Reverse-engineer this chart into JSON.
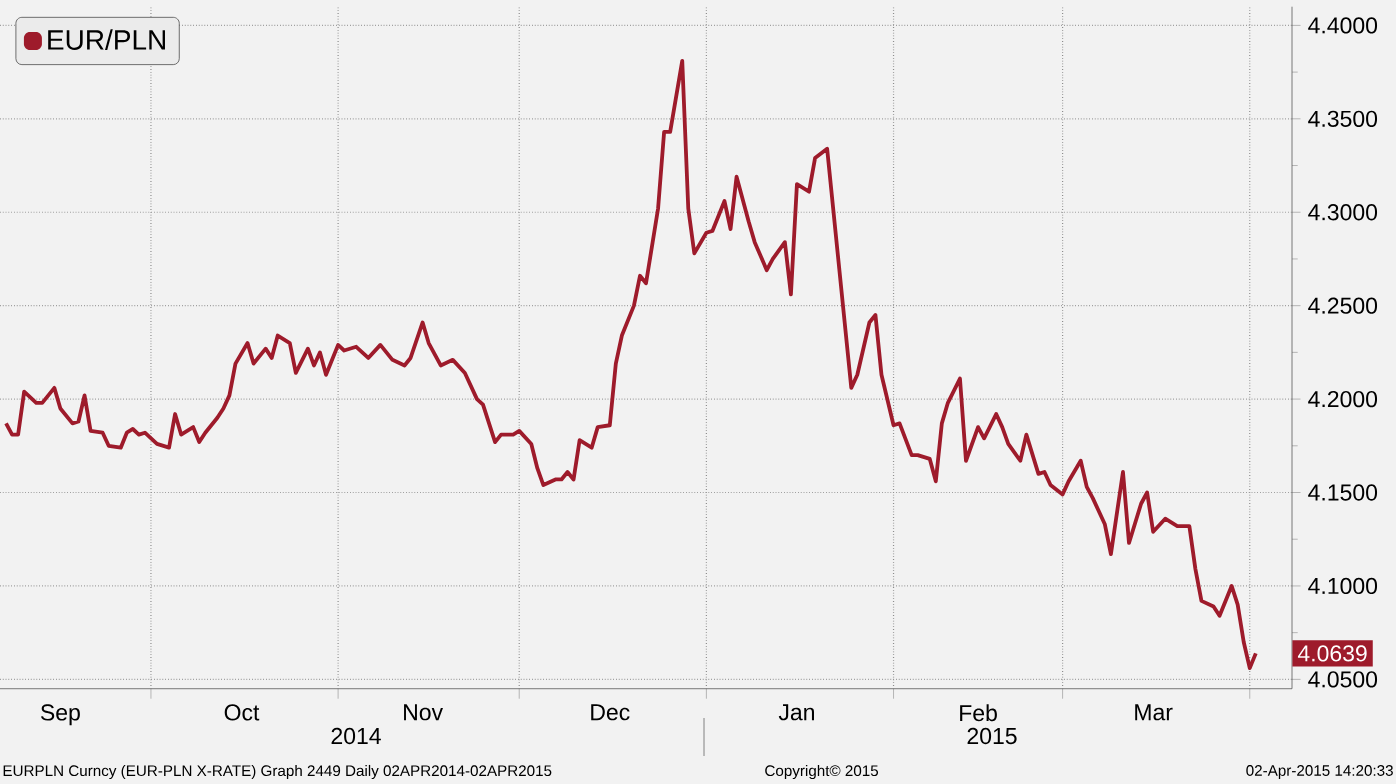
{
  "chart_data": {
    "type": "line",
    "x": [
      "2014-09-07",
      "2014-09-08",
      "2014-09-09",
      "2014-09-10",
      "2014-09-12",
      "2014-09-13",
      "2014-09-15",
      "2014-09-16",
      "2014-09-18",
      "2014-09-19",
      "2014-09-20",
      "2014-09-21",
      "2014-09-23",
      "2014-09-24",
      "2014-09-26",
      "2014-09-27",
      "2014-09-28",
      "2014-09-29",
      "2014-09-30",
      "2014-10-02",
      "2014-10-04",
      "2014-10-05",
      "2014-10-06",
      "2014-10-08",
      "2014-10-09",
      "2014-10-10",
      "2014-10-12",
      "2014-10-13",
      "2014-10-14",
      "2014-10-15",
      "2014-10-17",
      "2014-10-18",
      "2014-10-20",
      "2014-10-21",
      "2014-10-22",
      "2014-10-24",
      "2014-10-25",
      "2014-10-27",
      "2014-10-28",
      "2014-10-29",
      "2014-10-30",
      "2014-11-01",
      "2014-11-02",
      "2014-11-04",
      "2014-11-06",
      "2014-11-08",
      "2014-11-10",
      "2014-11-12",
      "2014-11-13",
      "2014-11-15",
      "2014-11-16",
      "2014-11-18",
      "2014-11-20",
      "2014-11-22",
      "2014-11-24",
      "2014-11-25",
      "2014-11-27",
      "2014-11-28",
      "2014-11-30",
      "2014-12-01",
      "2014-12-03",
      "2014-12-04",
      "2014-12-05",
      "2014-12-07",
      "2014-12-08",
      "2014-12-09",
      "2014-12-10",
      "2014-12-11",
      "2014-12-13",
      "2014-12-14",
      "2014-12-16",
      "2014-12-17",
      "2014-12-18",
      "2014-12-20",
      "2014-12-21",
      "2014-12-22",
      "2014-12-24",
      "2014-12-25",
      "2014-12-26",
      "2014-12-28",
      "2014-12-29",
      "2014-12-30",
      "2015-01-01",
      "2015-01-02",
      "2015-01-04",
      "2015-01-05",
      "2015-01-06",
      "2015-01-08",
      "2015-01-09",
      "2015-01-11",
      "2015-01-12",
      "2015-01-14",
      "2015-01-15",
      "2015-01-16",
      "2015-01-18",
      "2015-01-19",
      "2015-01-21",
      "2015-01-22",
      "2015-01-25",
      "2015-01-26",
      "2015-01-28",
      "2015-01-29",
      "2015-01-30",
      "2015-02-01",
      "2015-02-02",
      "2015-02-04",
      "2015-02-05",
      "2015-02-07",
      "2015-02-08",
      "2015-02-09",
      "2015-02-10",
      "2015-02-12",
      "2015-02-13",
      "2015-02-15",
      "2015-02-16",
      "2015-02-18",
      "2015-02-19",
      "2015-02-20",
      "2015-02-22",
      "2015-02-23",
      "2015-02-25",
      "2015-02-26",
      "2015-02-27",
      "2015-03-01",
      "2015-03-02",
      "2015-03-04",
      "2015-03-05",
      "2015-03-06",
      "2015-03-08",
      "2015-03-09",
      "2015-03-11",
      "2015-03-12",
      "2015-03-14",
      "2015-03-15",
      "2015-03-16",
      "2015-03-18",
      "2015-03-19",
      "2015-03-20",
      "2015-03-22",
      "2015-03-23",
      "2015-03-24",
      "2015-03-26",
      "2015-03-27",
      "2015-03-29",
      "2015-03-30",
      "2015-03-31",
      "2015-04-01",
      "2015-04-02"
    ],
    "series": [
      {
        "name": "EUR/PLN",
        "color": "#9e1b2b",
        "values": [
          4.187,
          4.181,
          4.181,
          4.204,
          4.198,
          4.198,
          4.206,
          4.195,
          4.187,
          4.188,
          4.202,
          4.183,
          4.182,
          4.175,
          4.174,
          4.182,
          4.184,
          4.181,
          4.182,
          4.176,
          4.174,
          4.192,
          4.181,
          4.185,
          4.177,
          4.182,
          4.19,
          4.195,
          4.202,
          4.219,
          4.23,
          4.219,
          4.227,
          4.222,
          4.234,
          4.23,
          4.214,
          4.227,
          4.218,
          4.225,
          4.213,
          4.229,
          4.226,
          4.228,
          4.222,
          4.229,
          4.221,
          4.218,
          4.222,
          4.241,
          4.23,
          4.218,
          4.221,
          4.214,
          4.2,
          4.197,
          4.177,
          4.181,
          4.181,
          4.183,
          4.176,
          4.163,
          4.154,
          4.157,
          4.157,
          4.161,
          4.157,
          4.178,
          4.174,
          4.185,
          4.186,
          4.219,
          4.234,
          4.25,
          4.266,
          4.262,
          4.302,
          4.343,
          4.343,
          4.381,
          4.302,
          4.278,
          4.289,
          4.29,
          4.306,
          4.291,
          4.319,
          4.295,
          4.284,
          4.269,
          4.275,
          4.284,
          4.256,
          4.315,
          4.311,
          4.329,
          4.334,
          4.302,
          4.206,
          4.213,
          4.241,
          4.245,
          4.213,
          4.186,
          4.187,
          4.17,
          4.17,
          4.168,
          4.156,
          4.187,
          4.198,
          4.211,
          4.167,
          4.185,
          4.179,
          4.192,
          4.185,
          4.176,
          4.167,
          4.181,
          4.16,
          4.161,
          4.154,
          4.149,
          4.156,
          4.167,
          4.153,
          4.147,
          4.133,
          4.117,
          4.161,
          4.123,
          4.144,
          4.15,
          4.129,
          4.136,
          4.134,
          4.132,
          4.132,
          4.109,
          4.092,
          4.089,
          4.084,
          4.1,
          4.09,
          4.07,
          4.056,
          4.0639
        ]
      }
    ],
    "xlim": [
      "2014-09-06",
      "2015-04-08"
    ],
    "xticks": [
      {
        "value": "2014-09-16",
        "label": "Sep"
      },
      {
        "value": "2014-10-01",
        "label": null
      },
      {
        "value": "2014-10-16",
        "label": "Oct"
      },
      {
        "value": "2014-11-01",
        "label": null
      },
      {
        "value": "2014-11-15",
        "label": "Nov"
      },
      {
        "value": "2014-12-01",
        "label": null
      },
      {
        "value": "2014-12-16",
        "label": "Dec"
      },
      {
        "value": "2015-01-01",
        "label": null
      },
      {
        "value": "2015-01-16",
        "label": "Jan"
      },
      {
        "value": "2015-02-01",
        "label": null
      },
      {
        "value": "2015-02-15",
        "label": "Feb"
      },
      {
        "value": "2015-03-01",
        "label": null
      },
      {
        "value": "2015-03-16",
        "label": "Mar"
      },
      {
        "value": "2015-04-01",
        "label": null
      }
    ],
    "ylim": [
      4.045,
      4.41
    ],
    "yticks": [
      {
        "value": 4.05,
        "label": "4.0500"
      },
      {
        "value": 4.1,
        "label": "4.1000"
      },
      {
        "value": 4.15,
        "label": "4.1500"
      },
      {
        "value": 4.2,
        "label": "4.2000"
      },
      {
        "value": 4.25,
        "label": "4.2500"
      },
      {
        "value": 4.3,
        "label": "4.3000"
      },
      {
        "value": 4.35,
        "label": "4.3500"
      },
      {
        "value": 4.4,
        "label": "4.4000"
      }
    ],
    "grid": true,
    "legend": "top left",
    "line_style": "solid",
    "annotations": [
      "2014",
      "2015",
      "EURPLN Curncy (EUR-PLN X-RATE) Graph 2449  Daily 02APR2014-02APR2015",
      "Copyright© 2015",
      "02-Apr-2015 14:20:33",
      {
        "text": "4.0639",
        "x": "2015-04-02",
        "y": 4.0639
      }
    ]
  }
}
